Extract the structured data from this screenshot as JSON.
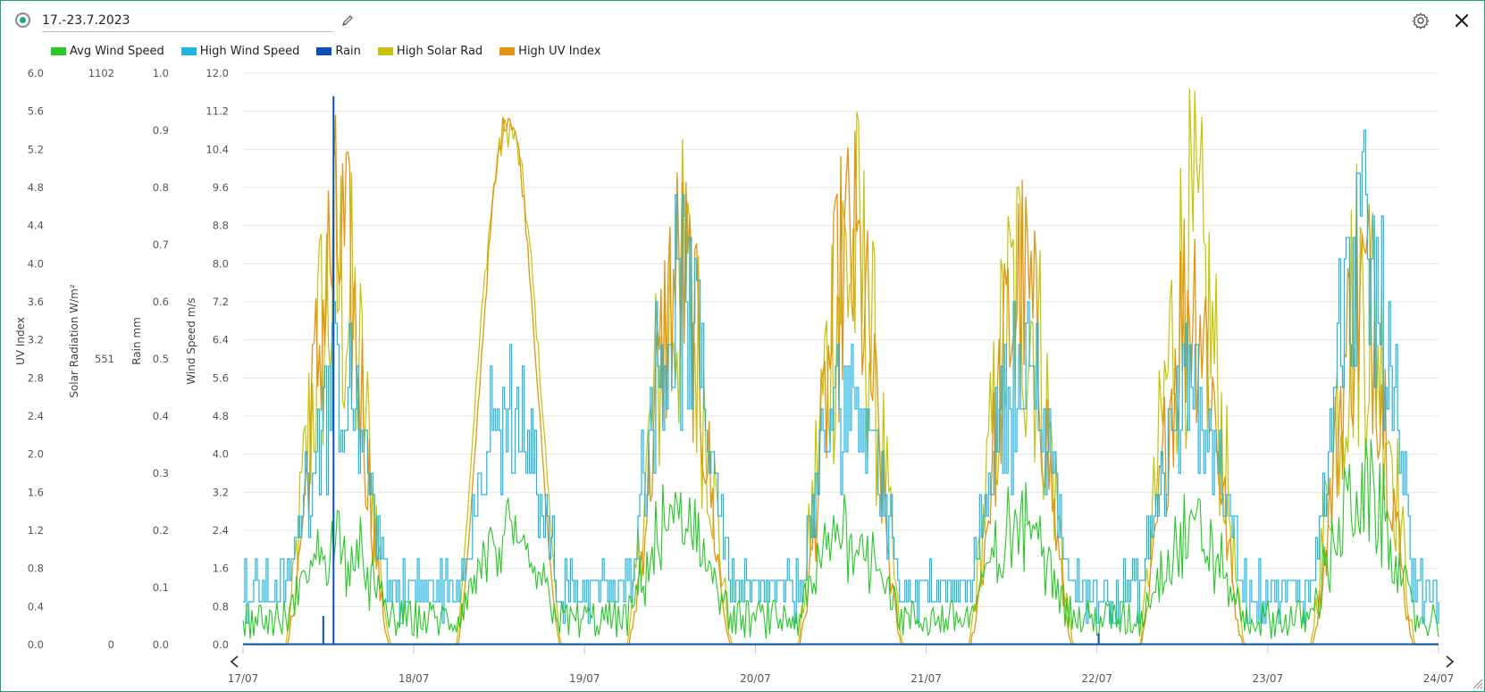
{
  "header": {
    "date_range": "17.-23.7.2023",
    "accent_color": "#1fa287"
  },
  "icons": {
    "status": "radio-selected-icon",
    "edit": "pencil-icon",
    "settings": "gear-icon",
    "close": "close-icon",
    "prev": "chevron-left-icon",
    "next": "chevron-right-icon",
    "resize": "resize-grip-icon"
  },
  "legend": [
    {
      "label": "Avg Wind Speed",
      "color": "#27c827"
    },
    {
      "label": "High Wind Speed",
      "color": "#22b4e0"
    },
    {
      "label": "Rain",
      "color": "#0b4fb4"
    },
    {
      "label": "High Solar Rad",
      "color": "#c4c20a"
    },
    {
      "label": "High UV Index",
      "color": "#e19513"
    }
  ],
  "chart_data": {
    "type": "line",
    "grid": true,
    "legend_position": "top-left",
    "x_labels": [
      "17/07",
      "18/07",
      "19/07",
      "20/07",
      "21/07",
      "22/07",
      "23/07",
      "24/07"
    ],
    "x_range_days": [
      0,
      7
    ],
    "axes": [
      {
        "id": "uv",
        "title": "UV Index",
        "min": 0,
        "max": 6.0,
        "ticks": [
          "0.0",
          "0.4",
          "0.8",
          "1.2",
          "1.6",
          "2.0",
          "2.4",
          "2.8",
          "3.2",
          "3.6",
          "4.0",
          "4.4",
          "4.8",
          "5.2",
          "5.6",
          "6.0"
        ]
      },
      {
        "id": "solar",
        "title": "Solar Radiation W/m²",
        "min": 0,
        "max": 1102,
        "ticks": [
          "0",
          "551",
          "1102"
        ]
      },
      {
        "id": "rain",
        "title": "Rain mm",
        "min": 0,
        "max": 1.0,
        "ticks": [
          "0.0",
          "0.1",
          "0.2",
          "0.3",
          "0.4",
          "0.5",
          "0.6",
          "0.7",
          "0.8",
          "0.9",
          "1.0"
        ]
      },
      {
        "id": "wind",
        "title": "Wind Speed m/s",
        "min": 0,
        "max": 12.0,
        "ticks": [
          "0.0",
          "0.8",
          "1.6",
          "2.4",
          "3.2",
          "4.0",
          "4.8",
          "5.6",
          "6.4",
          "7.2",
          "8.0",
          "8.8",
          "9.6",
          "10.4",
          "11.2",
          "12.0"
        ]
      }
    ],
    "series": [
      {
        "name": "Avg Wind Speed",
        "axis": "wind",
        "day_peaks": [
          3.0,
          3.0,
          3.6,
          3.4,
          3.4,
          3.2,
          4.4
        ],
        "baseline": 0.6
      },
      {
        "name": "High Wind Speed",
        "axis": "wind",
        "day_peaks": [
          7.2,
          6.4,
          9.6,
          7.2,
          7.6,
          7.0,
          11.0
        ],
        "baseline": 1.4
      },
      {
        "name": "Rain",
        "axis": "rain",
        "events": [
          {
            "x": 0.53,
            "value": 0.96
          },
          {
            "x": 0.47,
            "value": 0.05
          },
          {
            "x": 5.01,
            "value": 0.02
          }
        ]
      },
      {
        "name": "High Solar Rad",
        "axis": "solar",
        "day_peaks": [
          1030,
          1030,
          1000,
          1100,
          1000,
          1090,
          1000
        ]
      },
      {
        "name": "High UV Index",
        "axis": "uv",
        "day_peaks": [
          5.7,
          5.7,
          5.3,
          5.6,
          5.1,
          5.1,
          5.1
        ]
      }
    ]
  }
}
